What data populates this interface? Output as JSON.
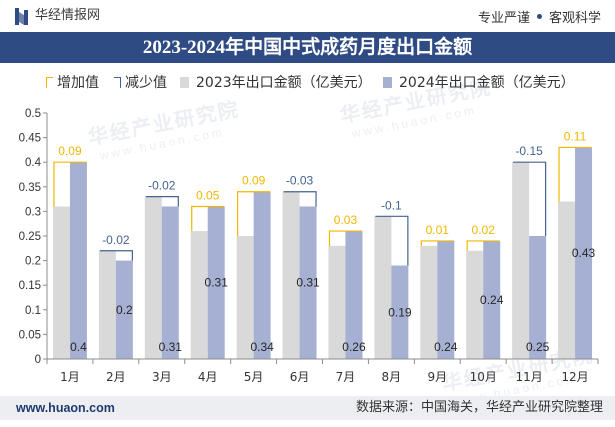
{
  "theme": {
    "primary_color": "#2F4B84"
  },
  "header": {
    "brand": "华经情报网",
    "logo_icon": "logo-icon",
    "tagline_left": "专业严谨",
    "separator_icon": "dot-icon",
    "tagline_right": "客观科学"
  },
  "watermark": {
    "text": "华经产业研究院",
    "url": "www.huaon.com"
  },
  "chart_data": {
    "type": "bar",
    "title": "2023-2024年中国中式成药月度出口金额",
    "categories": [
      "1月",
      "2月",
      "3月",
      "4月",
      "5月",
      "6月",
      "7月",
      "8月",
      "9月",
      "10月",
      "11月",
      "12月"
    ],
    "series": [
      {
        "name": "2023年出口金额（亿美元）",
        "color": "#D9D9D9",
        "values": [
          0.31,
          0.22,
          0.33,
          0.26,
          0.25,
          0.34,
          0.23,
          0.29,
          0.23,
          0.22,
          0.4,
          0.32
        ]
      },
      {
        "name": "2024年出口金额（亿美元）",
        "color": "#A6B0D3",
        "values": [
          0.4,
          0.2,
          0.31,
          0.31,
          0.34,
          0.31,
          0.26,
          0.19,
          0.24,
          0.24,
          0.25,
          0.43
        ]
      }
    ],
    "differences": {
      "increase_label": "增加值",
      "decrease_label": "减少值",
      "increase_color": "#F2B700",
      "decrease_color": "#44628F",
      "values": [
        0.09,
        -0.02,
        -0.02,
        0.05,
        0.09,
        -0.03,
        0.03,
        -0.1,
        0.01,
        0.02,
        -0.15,
        0.11
      ]
    },
    "ylim": [
      0,
      0.5
    ],
    "yticks": [
      0,
      0.05,
      0.1,
      0.15,
      0.2,
      0.25,
      0.3,
      0.35,
      0.4,
      0.45,
      0.5
    ],
    "grid": false,
    "legend_position": "top"
  },
  "footer": {
    "url": "www.huaon.com",
    "source": "数据来源：中国海关，华经产业研究院整理"
  }
}
